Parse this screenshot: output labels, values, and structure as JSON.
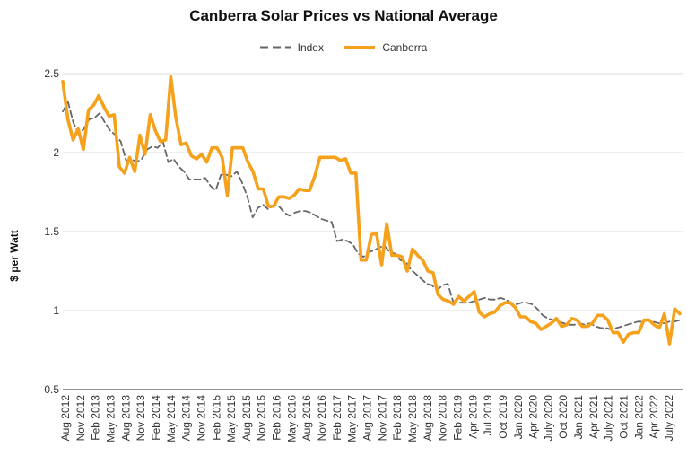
{
  "chart_data": {
    "type": "line",
    "title": "Canberra Solar Prices vs National Average",
    "xlabel": "",
    "ylabel": "$ per Watt",
    "ylim": [
      0.5,
      2.5
    ],
    "yticks": [
      0.5,
      1,
      1.5,
      2,
      2.5
    ],
    "ytick_labels": [
      "0.5",
      "1",
      "1.5",
      "2",
      "2.5"
    ],
    "grid": true,
    "legend_position": "top-center",
    "x_start": "Aug 2012",
    "x_end": "Sep 2022",
    "xtick_labels": [
      "Aug 2012",
      "Nov 2012",
      "Feb 2013",
      "May 2013",
      "Aug 2013",
      "Nov 2013",
      "Feb 2014",
      "May 2014",
      "Aug 2014",
      "Nov 2014",
      "Feb 2015",
      "May 2015",
      "Aug 2015",
      "Nov 2015",
      "Feb 2016",
      "May 2016",
      "Aug 2016",
      "Nov 2016",
      "Feb 2017",
      "May 2017",
      "Aug 2017",
      "Nov 2017",
      "Feb 2018",
      "May 2018",
      "Aug 2018",
      "Nov 2018",
      "Feb 2019",
      "Apr 2019",
      "Jul 2019",
      "Oct 2019",
      "Jan 2020",
      "Apr 2020",
      "July 2020",
      "Oct 2020",
      "Jan 2021",
      "Apr 2021",
      "July 2021",
      "Oct 2021",
      "Jan 2022",
      "Apr 2022",
      "July 2022"
    ],
    "series": [
      {
        "name": "Index",
        "color": "#666666",
        "style": "dashed",
        "values": [
          2.26,
          2.32,
          2.19,
          2.12,
          2.15,
          2.21,
          2.22,
          2.25,
          2.19,
          2.14,
          2.11,
          2.07,
          1.95,
          1.96,
          1.94,
          1.96,
          2.02,
          2.04,
          2.03,
          2.07,
          1.94,
          1.96,
          1.91,
          1.88,
          1.83,
          1.83,
          1.83,
          1.84,
          1.79,
          1.76,
          1.86,
          1.86,
          1.85,
          1.88,
          1.81,
          1.72,
          1.59,
          1.65,
          1.67,
          1.64,
          1.67,
          1.66,
          1.62,
          1.6,
          1.62,
          1.63,
          1.63,
          1.62,
          1.6,
          1.58,
          1.57,
          1.56,
          1.44,
          1.45,
          1.44,
          1.42,
          1.36,
          1.34,
          1.37,
          1.38,
          1.4,
          1.41,
          1.37,
          1.36,
          1.32,
          1.31,
          1.26,
          1.23,
          1.2,
          1.17,
          1.16,
          1.13,
          1.16,
          1.17,
          1.06,
          1.05,
          1.05,
          1.05,
          1.06,
          1.07,
          1.08,
          1.07,
          1.07,
          1.08,
          1.07,
          1.05,
          1.04,
          1.05,
          1.05,
          1.04,
          1.01,
          0.97,
          0.95,
          0.94,
          0.93,
          0.92,
          0.91,
          0.91,
          0.92,
          0.91,
          0.92,
          0.9,
          0.89,
          0.89,
          0.88,
          0.89,
          0.9,
          0.91,
          0.92,
          0.93,
          0.93,
          0.94,
          0.93,
          0.92,
          0.92,
          0.93,
          0.93,
          0.94
        ]
      },
      {
        "name": "Canberra",
        "color": "#F5A11C",
        "style": "solid",
        "values": [
          2.45,
          2.21,
          2.08,
          2.15,
          2.02,
          2.27,
          2.3,
          2.36,
          2.29,
          2.23,
          2.24,
          1.91,
          1.87,
          1.97,
          1.88,
          2.11,
          1.99,
          2.24,
          2.14,
          2.07,
          2.08,
          2.48,
          2.22,
          2.05,
          2.06,
          1.98,
          1.96,
          1.99,
          1.94,
          2.03,
          2.03,
          1.97,
          1.73,
          2.03,
          2.03,
          2.03,
          1.94,
          1.88,
          1.77,
          1.77,
          1.66,
          1.66,
          1.72,
          1.72,
          1.71,
          1.73,
          1.77,
          1.76,
          1.76,
          1.85,
          1.97,
          1.97,
          1.97,
          1.97,
          1.95,
          1.96,
          1.87,
          1.87,
          1.32,
          1.32,
          1.48,
          1.49,
          1.29,
          1.55,
          1.35,
          1.35,
          1.34,
          1.25,
          1.39,
          1.35,
          1.32,
          1.25,
          1.24,
          1.1,
          1.07,
          1.06,
          1.04,
          1.09,
          1.06,
          1.09,
          1.12,
          0.99,
          0.96,
          0.98,
          0.99,
          1.03,
          1.05,
          1.05,
          1.02,
          0.96,
          0.96,
          0.93,
          0.92,
          0.88,
          0.9,
          0.92,
          0.95,
          0.9,
          0.91,
          0.95,
          0.94,
          0.9,
          0.9,
          0.92,
          0.97,
          0.97,
          0.94,
          0.86,
          0.86,
          0.8,
          0.85,
          0.86,
          0.86,
          0.94,
          0.94,
          0.91,
          0.89,
          0.98,
          0.79,
          1.01,
          0.98
        ]
      }
    ]
  }
}
